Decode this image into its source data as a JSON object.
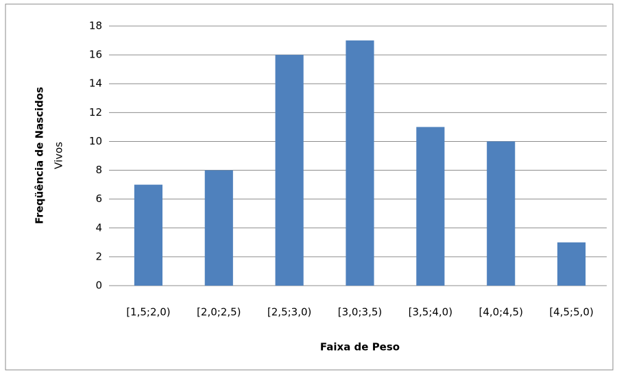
{
  "chart_data": {
    "type": "bar",
    "ylabel": [
      "Freqüência de Nascidos",
      "Vivos"
    ],
    "xlabel": "Faixa de Peso",
    "categories": [
      "[1,5;2,0)",
      "[2,0;2,5)",
      "[2,5;3,0)",
      "[3,0;3,5)",
      "[3,5;4,0)",
      "[4,0;4,5)",
      "[4,5;5,0)"
    ],
    "values": [
      7,
      8,
      16,
      17,
      11,
      10,
      3
    ],
    "color": "#4f81bd",
    "ylim": [
      0,
      18
    ],
    "yticks": [
      0,
      2,
      4,
      6,
      8,
      10,
      12,
      14,
      16,
      18
    ],
    "grid": true
  }
}
